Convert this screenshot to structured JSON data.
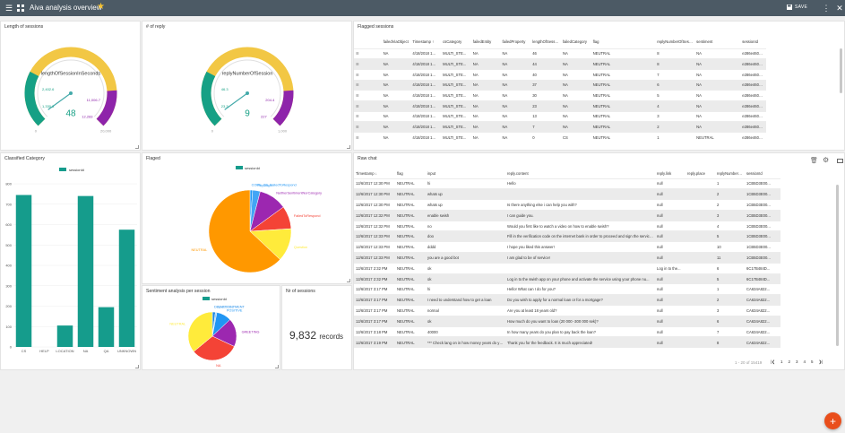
{
  "app": {
    "title": "Aiva analysis overview",
    "save_label": "SAVE",
    "accent": "#4c5a65",
    "fab_label": "+"
  },
  "gauges": [
    {
      "title": "Length of sessions",
      "label": "lengthOfSessionInSeconds",
      "value": "48",
      "min": "0",
      "max": "20,000",
      "ticks_inner": [
        "2,402.6",
        "1,330.3",
        "11,006.7",
        "12,283"
      ]
    },
    {
      "title": "# of reply",
      "label": "replyNumberOfSession",
      "value": "9",
      "min": "0",
      "max": "1,000",
      "ticks_inner": [
        "46.3",
        "23.3",
        "204.4",
        "227"
      ]
    }
  ],
  "flagged": {
    "title": "Flagged sessions",
    "columns": [
      "failedViaObject",
      "Timestamp",
      "csCategory",
      "failedEntity",
      "failedProperty",
      "lengthOfSession",
      "failedCategory",
      "flag",
      "replyNumberOfSession",
      "sentiment",
      "sessionId"
    ],
    "rows": [
      [
        "NA",
        "4/18/2018 1...",
        "MULTI_STE...",
        "NA",
        "NA",
        "46",
        "NA",
        "NEUTRAL",
        "8",
        "NA",
        "e286e460d5..."
      ],
      [
        "NA",
        "4/18/2018 1...",
        "MULTI_STE...",
        "NA",
        "NA",
        "44",
        "NA",
        "NEUTRAL",
        "8",
        "NA",
        "e286e460d5..."
      ],
      [
        "NA",
        "4/18/2018 1...",
        "MULTI_STE...",
        "NA",
        "NA",
        "40",
        "NA",
        "NEUTRAL",
        "7",
        "NA",
        "e286e460d5..."
      ],
      [
        "NA",
        "4/18/2018 1...",
        "MULTI_STE...",
        "NA",
        "NA",
        "37",
        "NA",
        "NEUTRAL",
        "6",
        "NA",
        "e286e460d5..."
      ],
      [
        "NA",
        "4/18/2018 1...",
        "MULTI_STE...",
        "NA",
        "NA",
        "30",
        "NA",
        "NEUTRAL",
        "5",
        "NA",
        "e286e460d5..."
      ],
      [
        "NA",
        "4/18/2018 1...",
        "MULTI_STE...",
        "NA",
        "NA",
        "23",
        "NA",
        "NEUTRAL",
        "4",
        "NA",
        "e286e460d5..."
      ],
      [
        "NA",
        "4/18/2018 1...",
        "MULTI_STE...",
        "NA",
        "NA",
        "13",
        "NA",
        "NEUTRAL",
        "3",
        "NA",
        "e286e460d5..."
      ],
      [
        "NA",
        "4/18/2018 1...",
        "MULTI_STE...",
        "NA",
        "NA",
        "7",
        "NA",
        "NEUTRAL",
        "2",
        "NA",
        "e286e460d5..."
      ],
      [
        "NA",
        "4/18/2018 1...",
        "MULTI_STE...",
        "NA",
        "NA",
        "0",
        "CS",
        "NEUTRAL",
        "1",
        "NEUTRAL",
        "e286e460d5..."
      ]
    ]
  },
  "classified": {
    "title": "Classified Category",
    "legend": "sessionId",
    "categories": [
      "CS",
      "HELP",
      "LOCATION",
      "NA",
      "QA",
      "UNKNOWN"
    ],
    "values": [
      745,
      0,
      105,
      740,
      195,
      575
    ],
    "yticks": [
      "800",
      "700",
      "600",
      "500",
      "400",
      "300",
      "200",
      "100",
      "0"
    ],
    "color": "#159c8c"
  },
  "flaged": {
    "title": "Flaged",
    "legend": "sessionId",
    "labels": [
      "CORE_CS_FailedToRespond",
      "Feedback",
      "NeitherSentimentNorCategory",
      "FailedToRespond",
      "Question",
      "NEUTRAL"
    ],
    "values": [
      1,
      3,
      11,
      9,
      13,
      63
    ],
    "colors": [
      "#2196f3",
      "#42a5f5",
      "#9c27b0",
      "#f44336",
      "#ffeb3b",
      "#ff9800"
    ]
  },
  "sentiment": {
    "title": "Sentiment analysis per session",
    "legend": "sessionId",
    "labels": [
      "DISAPPOINTMENT",
      "NEGATIVE",
      "POSITIVE",
      "GREETING",
      "NA",
      "NEUTRAL"
    ],
    "values": [
      2,
      1,
      10,
      19,
      32,
      36
    ],
    "colors": [
      "#1e88e5",
      "#90caf9",
      "#2196f3",
      "#9c27b0",
      "#f44336",
      "#ffeb3b"
    ]
  },
  "nr_sessions": {
    "title": "Nr of sessions",
    "value": "9,832",
    "unit": "records"
  },
  "raw": {
    "title": "Raw chat",
    "columns": [
      "Timestamp",
      "flag",
      "input",
      "reply.content",
      "reply.link",
      "reply.place",
      "replyNumberOfS...",
      "sessionId"
    ],
    "rows": [
      [
        "12/6/2017 12:30 PM",
        "NEUTRAL",
        "hi",
        "Hello",
        "null",
        "",
        "1",
        "1CB5D3E00..."
      ],
      [
        "12/6/2017 12:30 PM",
        "NEUTRAL",
        "whats up",
        "",
        "null",
        "",
        "2",
        "1CB5D3E00..."
      ],
      [
        "12/6/2017 12:30 PM",
        "NEUTRAL",
        "whats up",
        "Is there anything else i can help you with?",
        "null",
        "",
        "2",
        "1CB5D3E00..."
      ],
      [
        "12/6/2017 12:32 PM",
        "NEUTRAL",
        "enable swish",
        "I can guide you.",
        "null",
        "",
        "3",
        "1CB5D3E00..."
      ],
      [
        "12/6/2017 12:32 PM",
        "NEUTRAL",
        "no",
        "Would you first like to watch a video on how to enable swish?",
        "null",
        "",
        "4",
        "1CB5D3E00..."
      ],
      [
        "12/6/2017 12:33 PM",
        "NEUTRAL",
        "doo",
        "Fill in the verification code on the internet bank in order to proceed and sign the service...",
        "null",
        "",
        "5",
        "1CB5D3E00..."
      ],
      [
        "12/6/2017 12:33 PM",
        "NEUTRAL",
        "dddd",
        "I hope you liked this answer!",
        "null",
        "",
        "10",
        "1CB5D3E00..."
      ],
      [
        "12/6/2017 12:33 PM",
        "NEUTRAL",
        "you are a good bot",
        "I am glad to be of service!",
        "null",
        "",
        "11",
        "1CB5D3E00..."
      ],
      [
        "12/6/2017 2:32 PM",
        "NEUTRAL",
        "ok",
        "",
        "Log in to the...",
        "",
        "6",
        "6C17B484D..."
      ],
      [
        "12/6/2017 2:32 PM",
        "NEUTRAL",
        "ok",
        "Log in to the swish app on your phone and activate the service using your phone nu...",
        "null",
        "",
        "5",
        "6C17B484D..."
      ],
      [
        "12/6/2017 3:17 PM",
        "NEUTRAL",
        "hi",
        "Hello! What can I do for you?",
        "null",
        "",
        "1",
        "CA634A822..."
      ],
      [
        "12/6/2017 3:17 PM",
        "NEUTRAL",
        "I need to understand how to get a loan",
        "Do you wish to apply for a normal loan or for a mortgage?",
        "null",
        "",
        "2",
        "CA634A822..."
      ],
      [
        "12/6/2017 3:17 PM",
        "NEUTRAL",
        "normal",
        "Are you at least 18 years old?",
        "null",
        "",
        "3",
        "CA634A822..."
      ],
      [
        "12/6/2017 3:17 PM",
        "NEUTRAL",
        "ok",
        "How much do you want to loan (20 000 -300 000 sek)?",
        "null",
        "",
        "6",
        "CA634A822..."
      ],
      [
        "12/6/2017 3:18 PM",
        "NEUTRAL",
        "40000",
        "In how many years do you plan to pay back the loan?",
        "null",
        "",
        "7",
        "CA634A822..."
      ],
      [
        "12/6/2017 3:19 PM",
        "NEUTRAL",
        "*** Check lang on in how money years do you plan to pay b...",
        "Thank you for the feedback. It is much appreciated!",
        "null",
        "",
        "8",
        "CA634A822..."
      ]
    ],
    "pager_info": "1 - 20 of 15419",
    "pages": [
      "1",
      "2",
      "3",
      "4",
      "5"
    ]
  }
}
